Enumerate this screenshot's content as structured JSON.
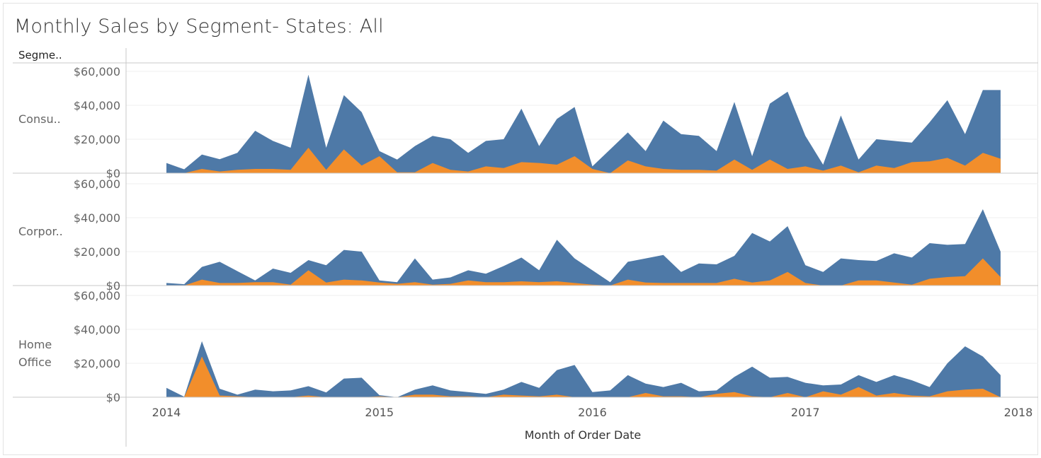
{
  "title": "Monthly Sales by Segment- States: All",
  "colors": {
    "total": "#4e79a7",
    "highlight": "#f28e2b",
    "grid": "#efefef",
    "axis": "#c8c8c8"
  },
  "chart_data": {
    "type": "area",
    "row_header": "Segme..",
    "xlabel": "Month of Order Date",
    "x_ticks": [
      "2014",
      "2015",
      "2016",
      "2017",
      "2018"
    ],
    "y_ticks": [
      "$0",
      "$20,000",
      "$40,000",
      "$60,000"
    ],
    "y_tick_values": [
      0,
      20000,
      40000,
      60000
    ],
    "ylim": [
      0,
      60000
    ],
    "x_start": "2014-01",
    "x_end": "2017-12",
    "panels": [
      {
        "segment": "Consu..",
        "series": [
          {
            "values": [
              6000,
              2300,
              11000,
              8200,
              12000,
              25000,
              19000,
              15000,
              58000,
              15000,
              46000,
              36000,
              13000,
              8000,
              16000,
              22000,
              20000,
              12000,
              19000,
              20000,
              38000,
              16000,
              32000,
              39000,
              4000,
              14000,
              24000,
              13000,
              31000,
              23000,
              22000,
              13000,
              42000,
              10000,
              41000,
              48000,
              22000,
              5000,
              34000,
              8000,
              20000,
              19000,
              18000,
              30000,
              43000,
              23000,
              49000,
              49000
            ]
          },
          {
            "values": [
              0,
              0,
              2500,
              1000,
              2000,
              2500,
              2500,
              2000,
              15000,
              2000,
              14000,
              4500,
              10000,
              500,
              500,
              6000,
              2000,
              1000,
              4000,
              3000,
              6500,
              6000,
              5000,
              10000,
              2500,
              0,
              7500,
              4000,
              2500,
              2000,
              2000,
              1500,
              8000,
              2000,
              8000,
              2500,
              4000,
              1500,
              4500,
              500,
              4500,
              3000,
              6500,
              7000,
              9000,
              4500,
              12000,
              8500
            ]
          }
        ]
      },
      {
        "segment": "Corpor..",
        "series": [
          {
            "values": [
              1500,
              800,
              11000,
              14000,
              8500,
              3000,
              10000,
              7500,
              15000,
              12000,
              21000,
              20000,
              3000,
              2000,
              16000,
              3500,
              4800,
              9000,
              7000,
              11500,
              16500,
              9000,
              27000,
              16000,
              9000,
              2000,
              14000,
              16000,
              18000,
              8000,
              13000,
              12500,
              17500,
              31000,
              26000,
              35000,
              12000,
              8000,
              16000,
              15000,
              14500,
              19000,
              16500,
              25000,
              24000,
              24500,
              45000,
              20000
            ]
          },
          {
            "values": [
              0,
              0,
              3500,
              1500,
              1500,
              2000,
              2000,
              500,
              9000,
              1800,
              3500,
              3000,
              1800,
              1000,
              2000,
              500,
              1000,
              3000,
              2000,
              2000,
              2500,
              2000,
              2500,
              1500,
              500,
              0,
              3500,
              1800,
              1500,
              1500,
              1500,
              1500,
              4000,
              1800,
              3000,
              8000,
              1500,
              0,
              0,
              3000,
              3000,
              1800,
              500,
              4000,
              5000,
              5500,
              16000,
              5000
            ]
          }
        ]
      },
      {
        "segment": "Home Office",
        "series": [
          {
            "values": [
              5500,
              300,
              33000,
              5000,
              1500,
              4500,
              3500,
              4000,
              6500,
              2800,
              11000,
              11500,
              1200,
              0,
              4500,
              7000,
              4000,
              3000,
              2000,
              4500,
              9000,
              5500,
              16000,
              19000,
              3000,
              4000,
              13000,
              8000,
              6000,
              8500,
              3500,
              4000,
              12000,
              18000,
              11500,
              12000,
              8500,
              7000,
              7500,
              13000,
              9000,
              13000,
              10000,
              6000,
              20000,
              30000,
              24000,
              13000
            ]
          },
          {
            "values": [
              0,
              0,
              24000,
              1000,
              500,
              0,
              0,
              0,
              1000,
              0,
              0,
              0,
              500,
              0,
              1500,
              1500,
              500,
              500,
              0,
              1500,
              1000,
              500,
              1500,
              0,
              0,
              0,
              0,
              2500,
              500,
              500,
              0,
              2000,
              3000,
              500,
              0,
              2500,
              0,
              3500,
              1500,
              6000,
              1000,
              2500,
              1000,
              500,
              3500,
              4500,
              5000,
              0
            ]
          }
        ]
      }
    ]
  }
}
